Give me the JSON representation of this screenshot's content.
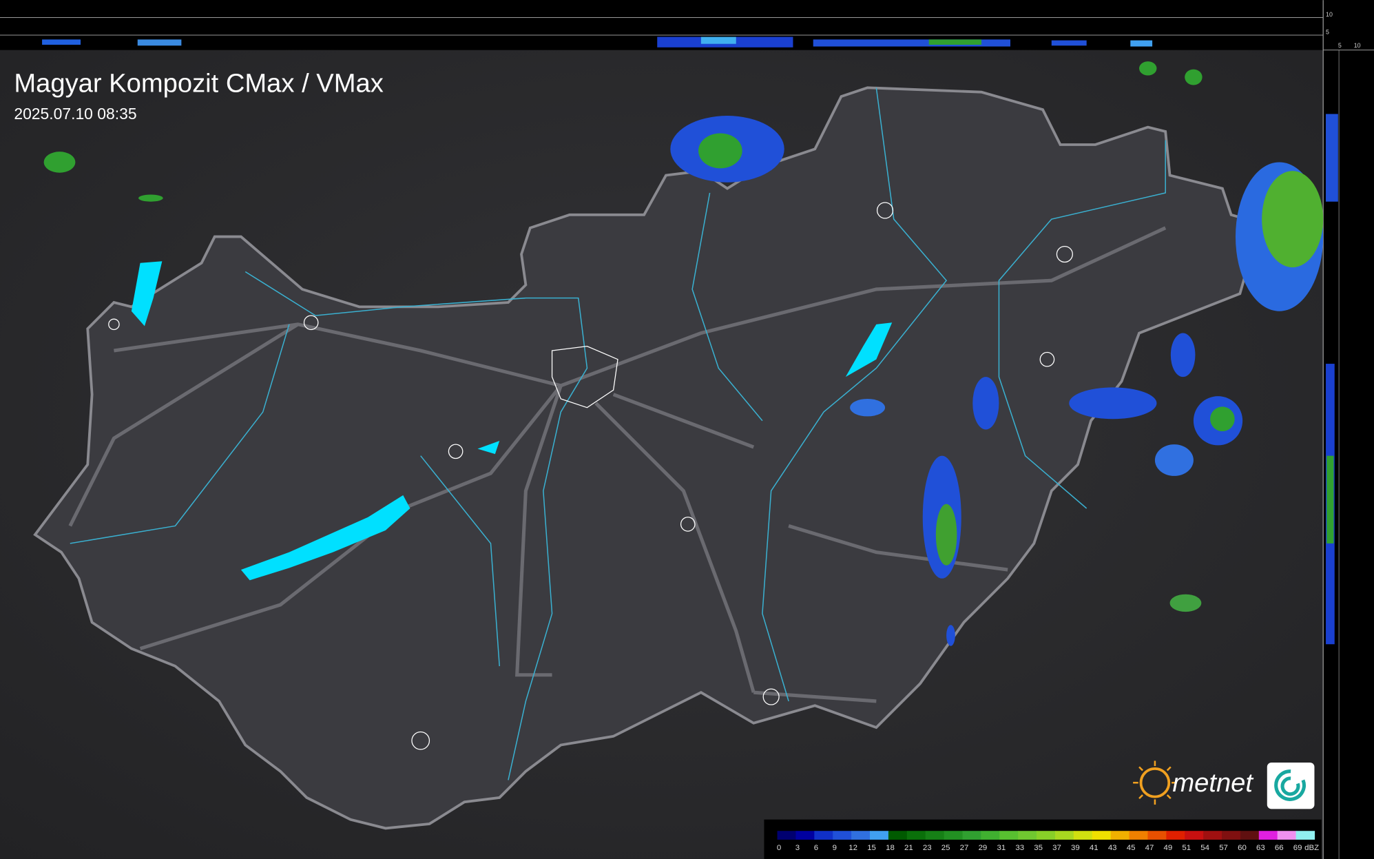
{
  "header": {
    "title": "Magyar Kompozit CMax / VMax",
    "timestamp": "2025.07.10 08:35"
  },
  "profile_axis": {
    "top_labels": [
      "10",
      "5"
    ],
    "side_labels": [
      "5",
      "10"
    ]
  },
  "legend": {
    "unit": "dBZ",
    "labels": [
      "0",
      "3",
      "6",
      "9",
      "12",
      "15",
      "18",
      "21",
      "23",
      "25",
      "27",
      "29",
      "31",
      "33",
      "35",
      "37",
      "39",
      "41",
      "43",
      "45",
      "47",
      "49",
      "51",
      "54",
      "57",
      "60",
      "63",
      "66",
      "69"
    ],
    "colors": [
      "#000070",
      "#0000a0",
      "#1030c8",
      "#2050d8",
      "#3070e0",
      "#40a0f0",
      "#005a00",
      "#0a700a",
      "#168016",
      "#229022",
      "#30a030",
      "#40b030",
      "#58c030",
      "#70c830",
      "#88d028",
      "#a8d820",
      "#d0e010",
      "#f0e000",
      "#f0b000",
      "#f08000",
      "#e85000",
      "#e02000",
      "#c81010",
      "#a01010",
      "#801010",
      "#601010",
      "#e020e0",
      "#f090f0",
      "#90f0f0"
    ]
  },
  "logo": {
    "text": "metnet"
  }
}
